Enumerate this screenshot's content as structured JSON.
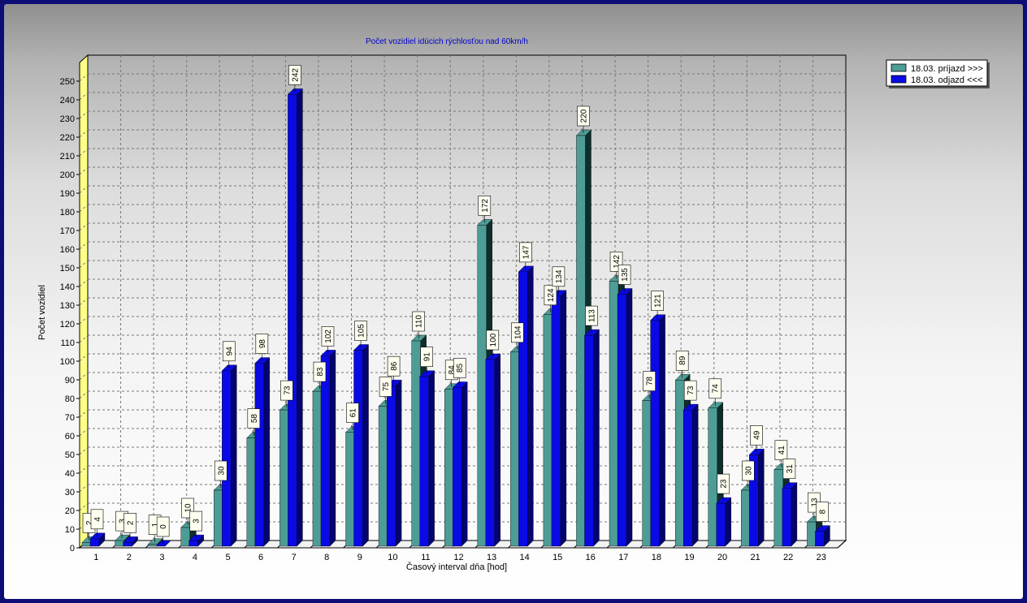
{
  "chart_data": {
    "type": "bar",
    "title": "Počet vozidiel idúcich rýchlosťou nad 60km/h",
    "xlabel": "Časový interval dňa [hod]",
    "ylabel": "Počet vozidiel",
    "ylim": [
      0,
      260
    ],
    "ytick_step": 10,
    "yticks_max": 250,
    "grid": true,
    "legend_position": "top-right",
    "categories": [
      "1",
      "2",
      "3",
      "4",
      "5",
      "6",
      "7",
      "8",
      "9",
      "10",
      "11",
      "12",
      "13",
      "14",
      "15",
      "16",
      "17",
      "18",
      "19",
      "20",
      "21",
      "22",
      "23"
    ],
    "series": [
      {
        "name": "18.03.  príjazd >>>",
        "color": "#4e9c96",
        "dark": "#0e2e2a",
        "values": [
          2,
          3,
          1,
          10,
          30,
          58,
          73,
          83,
          61,
          75,
          110,
          84,
          172,
          104,
          124,
          220,
          142,
          78,
          89,
          74,
          30,
          41,
          13
        ],
        "labels": [
          "2",
          "3",
          "1",
          "10",
          "30",
          "58",
          "73",
          "83",
          "61",
          "75",
          "110",
          "84",
          "172",
          "104",
          "124",
          "220",
          "142",
          "78",
          "89",
          "74",
          "30",
          "41",
          "13"
        ]
      },
      {
        "name": "18.03.  odjazd <<<",
        "color": "#0a0ae6",
        "dark": "#04046e",
        "values": [
          4,
          2,
          0,
          3,
          94,
          98,
          242,
          102,
          105,
          86,
          91,
          85,
          100,
          147,
          134,
          113,
          135,
          121,
          73,
          23,
          49,
          31,
          8
        ],
        "labels": [
          "4",
          "2",
          "0",
          "3",
          "94",
          "98",
          "242",
          "102",
          "105",
          "86",
          "91",
          "85",
          "100",
          "147",
          "134",
          "113",
          "135",
          "121",
          "73",
          "23",
          "49",
          "31",
          "8"
        ]
      }
    ]
  }
}
